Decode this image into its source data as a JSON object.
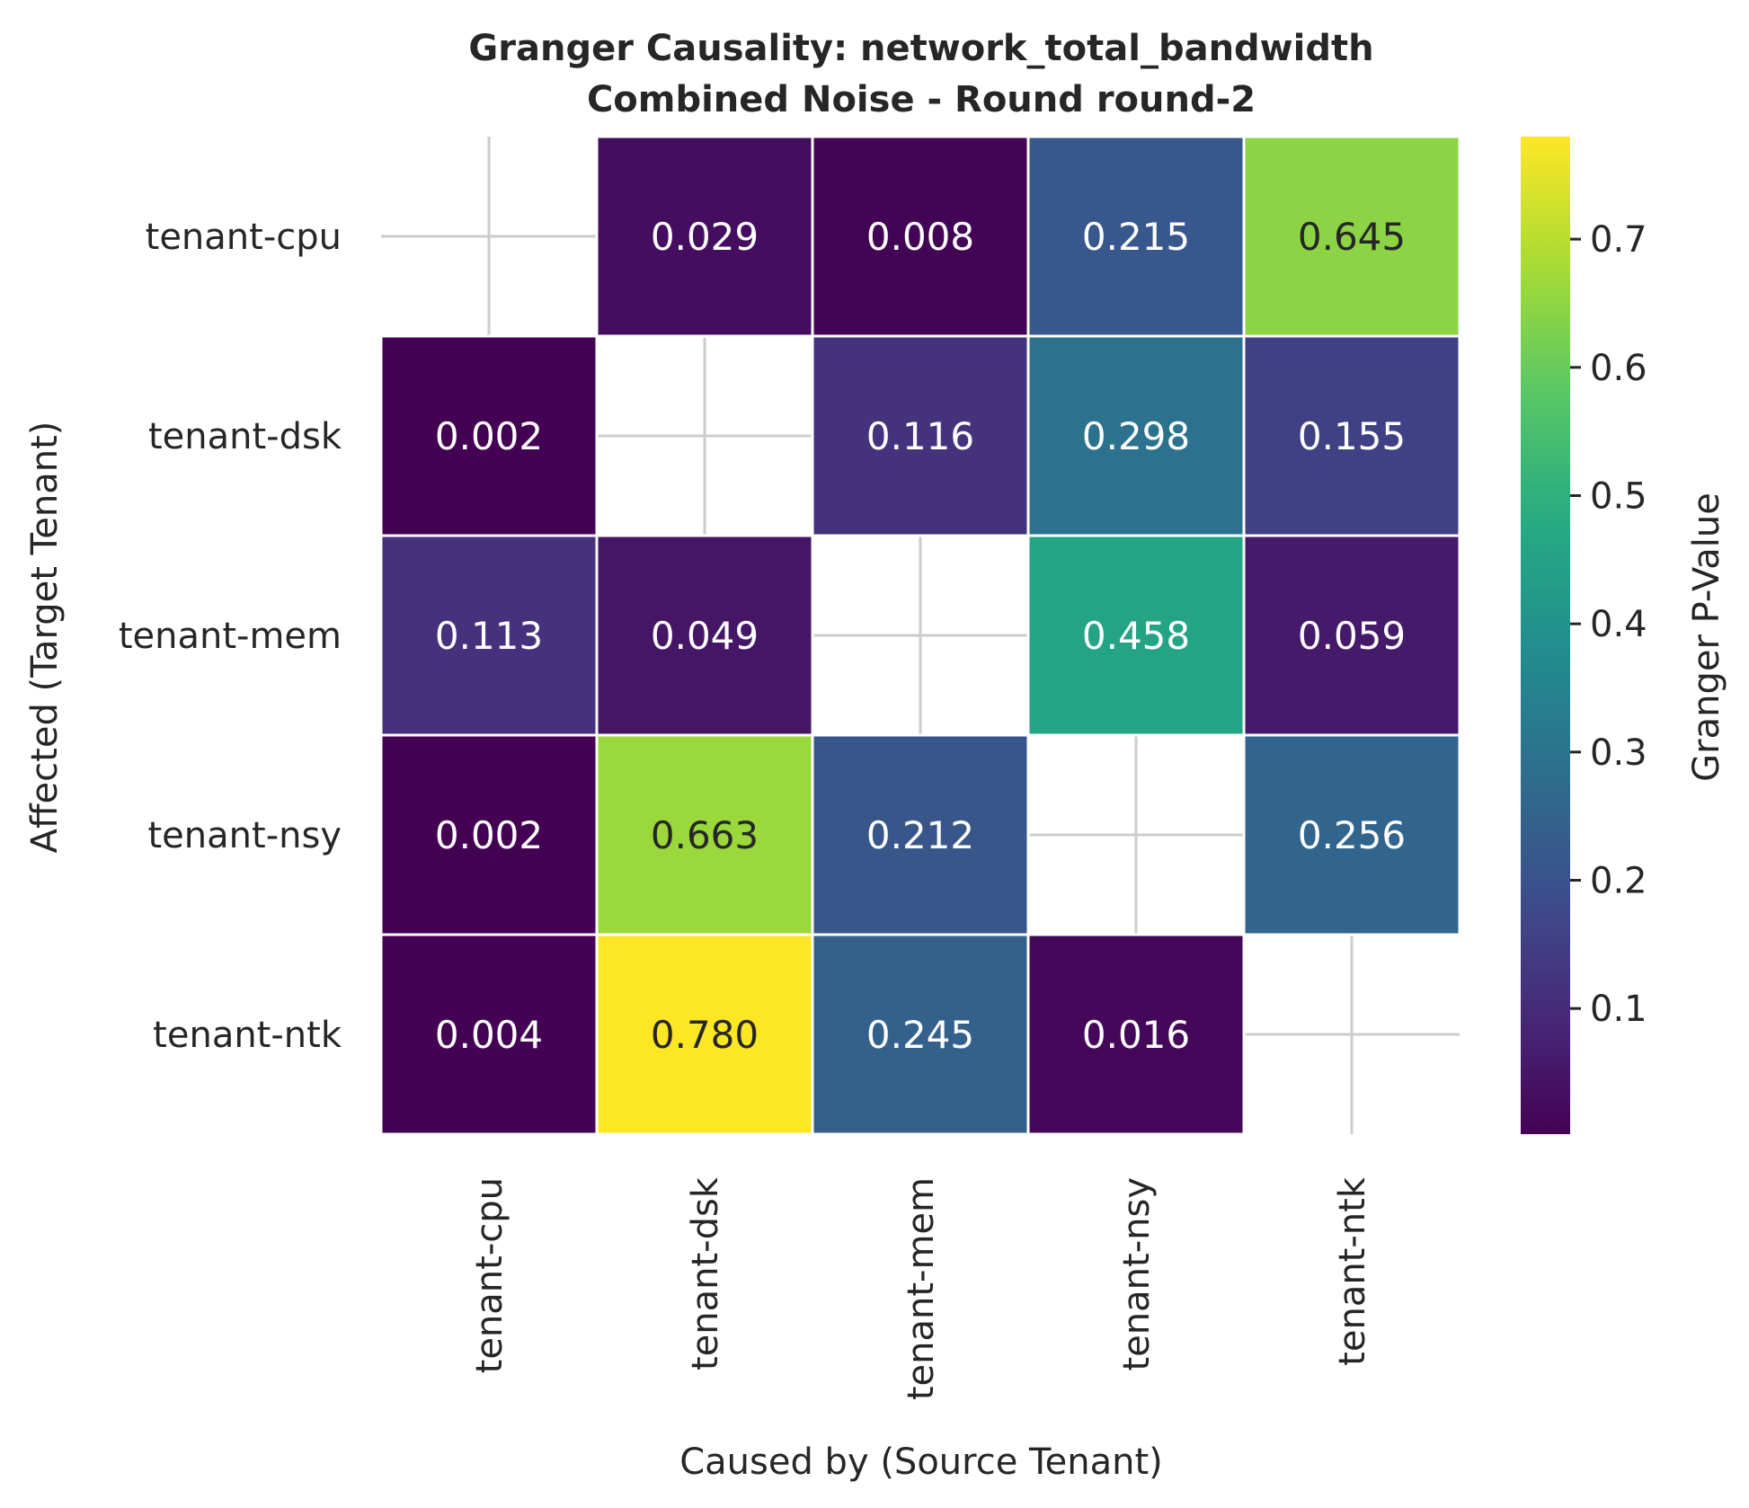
{
  "chart_data": {
    "type": "heatmap",
    "title": "Granger Causality: network_total_bandwidth",
    "subtitle": "Combined Noise - Round round-2",
    "xlabel": "Caused by (Source Tenant)",
    "ylabel": "Affected (Target Tenant)",
    "x_categories": [
      "tenant-cpu",
      "tenant-dsk",
      "tenant-mem",
      "tenant-nsy",
      "tenant-ntk"
    ],
    "y_categories": [
      "tenant-cpu",
      "tenant-dsk",
      "tenant-mem",
      "tenant-nsy",
      "tenant-ntk"
    ],
    "values": [
      [
        null,
        0.029,
        0.008,
        0.215,
        0.645
      ],
      [
        0.002,
        null,
        0.116,
        0.298,
        0.155
      ],
      [
        0.113,
        0.049,
        null,
        0.458,
        0.059
      ],
      [
        0.002,
        0.663,
        0.212,
        null,
        0.256
      ],
      [
        0.004,
        0.78,
        0.245,
        0.016,
        null
      ]
    ],
    "value_format": "3 decimals",
    "colormap": "viridis",
    "vmin": 0.002,
    "vmax": 0.78,
    "colorbar": {
      "label": "Granger P-Value",
      "ticks": [
        0.1,
        0.2,
        0.3,
        0.4,
        0.5,
        0.6,
        0.7
      ]
    },
    "grid": true,
    "colors": {
      "text": "#262626",
      "grid": "#cccccc",
      "cell_border": "#ffffff",
      "annotation_light": "#ffffff",
      "annotation_dark": "#262626"
    }
  }
}
